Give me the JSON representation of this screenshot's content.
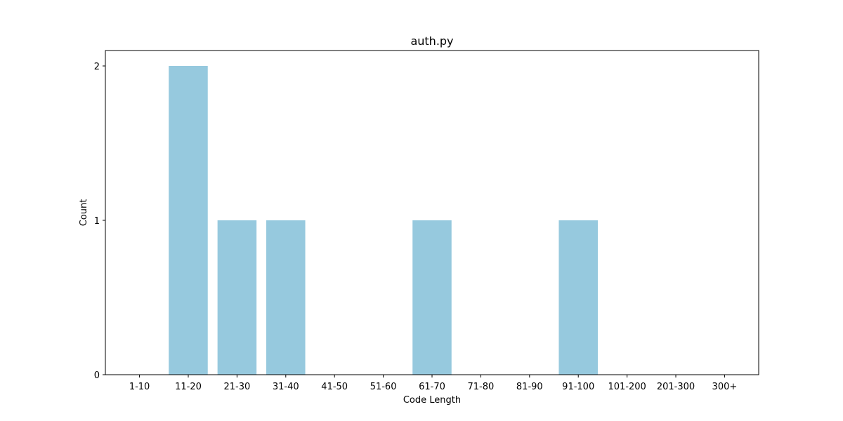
{
  "chart_data": {
    "type": "bar",
    "title": "auth.py",
    "xlabel": "Code Length",
    "ylabel": "Count",
    "categories": [
      "1-10",
      "11-20",
      "21-30",
      "31-40",
      "41-50",
      "51-60",
      "61-70",
      "71-80",
      "81-90",
      "91-100",
      "101-200",
      "201-300",
      "300+"
    ],
    "values": [
      0,
      2,
      1,
      1,
      0,
      0,
      1,
      0,
      0,
      1,
      0,
      0,
      0
    ],
    "yticks": [
      "0",
      "1",
      "2"
    ],
    "ylim": [
      0,
      2.1
    ],
    "grid": false,
    "bar_color": "#96c9de"
  }
}
